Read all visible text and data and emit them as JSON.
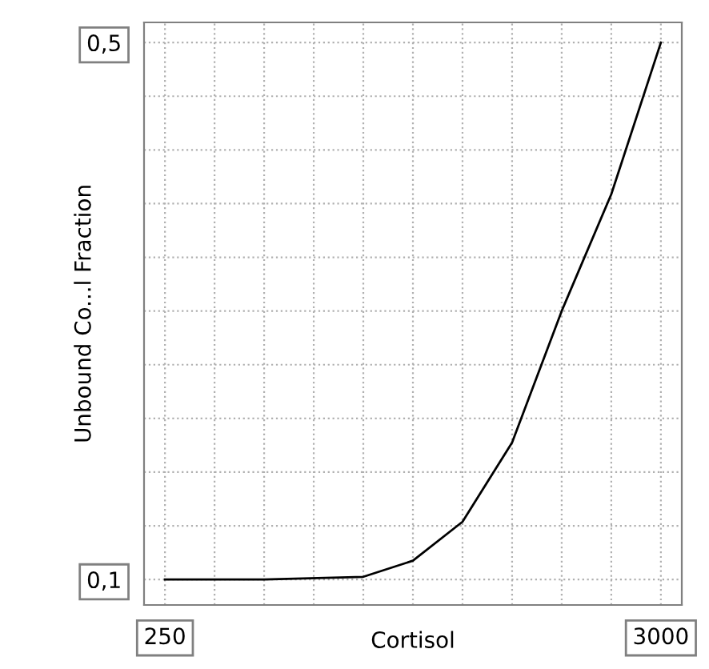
{
  "chart_data": {
    "type": "line",
    "xlabel": "Cortisol",
    "ylabel": "Unbound Co...l Fraction",
    "x": [
      250,
      800,
      1350,
      1625,
      1900,
      2175,
      2450,
      2725,
      3000
    ],
    "series": [
      {
        "color": "#000000",
        "values": [
          0.1,
          0.1,
          0.102,
          0.114,
          0.143,
          0.202,
          0.3,
          0.387,
          0.5
        ]
      }
    ],
    "xlim": [
      134,
      3116
    ],
    "ylim": [
      0.081,
      0.515
    ],
    "xticks": [
      250,
      {
        "value": 525,
        "label": null
      },
      {
        "value": 800,
        "label": null
      },
      {
        "value": 1075,
        "label": null
      },
      {
        "value": 1350,
        "label": null
      },
      {
        "value": 1625,
        "label": null
      },
      {
        "value": 1900,
        "label": null
      },
      {
        "value": 2175,
        "label": null
      },
      {
        "value": 2450,
        "label": null
      },
      {
        "value": 2725,
        "label": null
      },
      3000
    ],
    "yticks": [
      {
        "value": 0.1,
        "label": "0,1"
      },
      {
        "value": 0.14,
        "label": null
      },
      {
        "value": 0.18,
        "label": null
      },
      {
        "value": 0.22,
        "label": null
      },
      {
        "value": 0.26,
        "label": null
      },
      {
        "value": 0.3,
        "label": null
      },
      {
        "value": 0.34,
        "label": null
      },
      {
        "value": 0.38,
        "label": null
      },
      {
        "value": 0.42,
        "label": null
      },
      {
        "value": 0.46,
        "label": null
      },
      {
        "value": 0.5,
        "label": "0,5"
      }
    ],
    "grid": true,
    "line_style": "solid",
    "marker": "none"
  }
}
